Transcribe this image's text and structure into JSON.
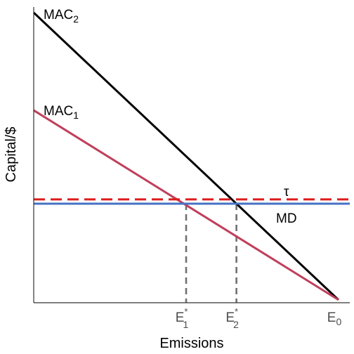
{
  "chart_data": {
    "type": "line",
    "title": "",
    "xlabel": "Emissions",
    "ylabel": "Capital/$",
    "xlim": [
      0,
      1
    ],
    "ylim": [
      0,
      1
    ],
    "grid": false,
    "legend": "none",
    "series": [
      {
        "name": "MAC",
        "subscript": "2",
        "type": "line",
        "x": [
          0,
          1
        ],
        "y": [
          1,
          0
        ],
        "color": "#000000",
        "style": "solid"
      },
      {
        "name": "MAC",
        "subscript": "1",
        "type": "line",
        "x": [
          0,
          1
        ],
        "y": [
          0.66,
          0
        ],
        "color": "#c0405c",
        "style": "solid"
      },
      {
        "name": "MD",
        "subscript": "",
        "type": "hline",
        "y": 0.335,
        "color": "#4472c4",
        "style": "solid"
      },
      {
        "name": "τ",
        "subscript": "",
        "type": "hline",
        "y": 0.35,
        "color": "#dd1c1c",
        "style": "dashed"
      }
    ],
    "vlines": [
      {
        "x": 0.5,
        "y_top": 0.335,
        "color": "#707070",
        "style": "dashed"
      },
      {
        "x": 0.665,
        "y_top": 0.335,
        "color": "#707070",
        "style": "dashed"
      }
    ],
    "xticks": [
      {
        "x": 0.5,
        "label": "E",
        "sub": "1",
        "sup": "*"
      },
      {
        "x": 0.665,
        "label": "E",
        "sub": "2",
        "sup": "*"
      },
      {
        "x": 1.0,
        "label": "E",
        "sub": "0",
        "sup": ""
      }
    ]
  }
}
